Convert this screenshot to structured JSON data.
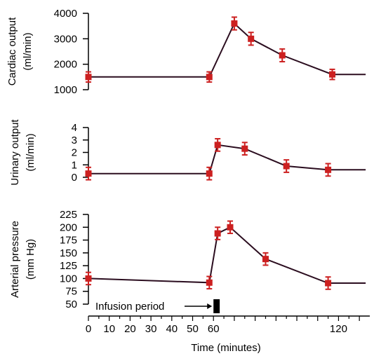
{
  "colors": {
    "line": "#2b0d1f",
    "marker": "#cc2020",
    "axis": "#000000",
    "infusion_bar": "#000000"
  },
  "chart_data": [
    {
      "type": "line",
      "ylabel": [
        "Cardiac output",
        "(ml/min)"
      ],
      "yticks": [
        1000,
        2000,
        3000,
        4000
      ],
      "ylim": [
        1000,
        4000
      ],
      "x": [
        0,
        58,
        70,
        78,
        93,
        117,
        133
      ],
      "values": [
        1500,
        1500,
        3600,
        3000,
        2350,
        1600,
        1600
      ],
      "errors": [
        200,
        200,
        250,
        250,
        250,
        200,
        null
      ]
    },
    {
      "type": "line",
      "ylabel": [
        "Urinary output",
        "(ml/min)"
      ],
      "yticks": [
        0,
        1,
        2,
        3,
        4
      ],
      "ylim": [
        0,
        4
      ],
      "x": [
        0,
        58,
        62,
        75,
        95,
        115,
        133
      ],
      "values": [
        0.3,
        0.3,
        2.6,
        2.3,
        0.9,
        0.6,
        0.6
      ],
      "errors": [
        0.5,
        0.5,
        0.5,
        0.5,
        0.5,
        0.5,
        null
      ]
    },
    {
      "type": "line",
      "ylabel": [
        "Arterial pressure",
        "(mm Hg)"
      ],
      "yticks": [
        50,
        75,
        100,
        125,
        150,
        175,
        200,
        225
      ],
      "ylim": [
        50,
        225
      ],
      "x": [
        0,
        58,
        62,
        68,
        85,
        115,
        133
      ],
      "values": [
        100,
        92,
        188,
        200,
        138,
        91,
        91
      ],
      "errors": [
        12,
        12,
        12,
        12,
        12,
        12,
        null
      ]
    }
  ],
  "xaxis": {
    "ticks": [
      0,
      10,
      20,
      30,
      40,
      50,
      60,
      120
    ],
    "xlim": [
      0,
      135
    ],
    "label": "Time (minutes)"
  },
  "annotation": {
    "text": "Infusion period",
    "start": 60,
    "end": 63
  }
}
